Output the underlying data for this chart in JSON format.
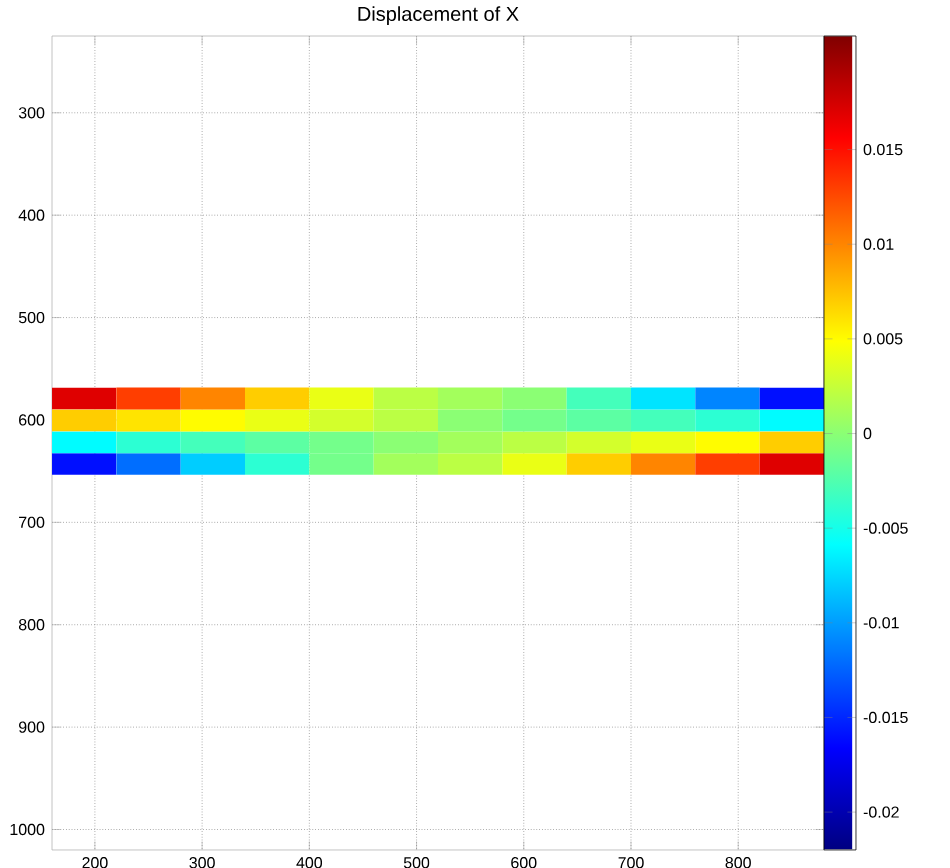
{
  "chart_data": {
    "type": "heatmap",
    "title": "Displacement of X",
    "x": [
      190,
      250,
      310,
      370,
      430,
      490,
      550,
      610,
      670,
      730,
      790,
      850
    ],
    "y": [
      643,
      622,
      600.5,
      579
    ],
    "cells": [
      [
        -0.016,
        -0.012,
        -0.008,
        -0.004,
        -0.001,
        0.001,
        0.002,
        0.004,
        0.007,
        0.01,
        0.013,
        0.017
      ],
      [
        -0.006,
        -0.004,
        -0.003,
        -0.002,
        -0.001,
        0,
        0.001,
        0.002,
        0.003,
        0.004,
        0.005,
        0.007
      ],
      [
        0.007,
        0.006,
        0.005,
        0.004,
        0.003,
        0.002,
        0,
        -0.001,
        -0.002,
        -0.003,
        -0.004,
        -0.006
      ],
      [
        0.017,
        0.013,
        0.01,
        0.007,
        0.004,
        0.002,
        0.001,
        0,
        -0.003,
        -0.007,
        -0.011,
        -0.016
      ]
    ],
    "xlim": [
      160,
      880
    ],
    "ylim": [
      1020,
      225
    ],
    "xticks": [
      200,
      300,
      400,
      500,
      600,
      700,
      800
    ],
    "yticks": [
      300,
      400,
      500,
      600,
      700,
      800,
      900,
      1000
    ],
    "clim": [
      -0.022,
      0.021
    ],
    "cticks": [
      -0.02,
      -0.015,
      -0.01,
      -0.005,
      0,
      0.005,
      0.01,
      0.015
    ],
    "grid": true
  }
}
